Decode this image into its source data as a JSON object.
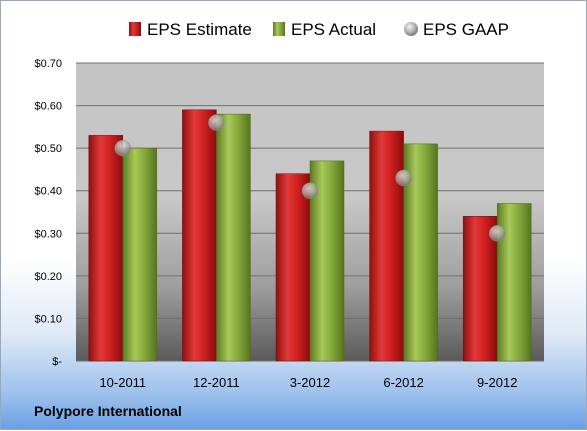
{
  "company": "Polypore International",
  "colors": {
    "estimate": "#cc1f1f",
    "actual": "#86a83c",
    "gaap": "#b8b8b8"
  },
  "chart_data": {
    "type": "bar",
    "categories": [
      "10-2011",
      "12-2011",
      "3-2012",
      "6-2012",
      "9-2012"
    ],
    "series": [
      {
        "name": "EPS Estimate",
        "kind": "bar",
        "values": [
          0.53,
          0.59,
          0.44,
          0.54,
          0.34
        ]
      },
      {
        "name": "EPS Actual",
        "kind": "bar",
        "values": [
          0.5,
          0.58,
          0.47,
          0.51,
          0.37
        ]
      },
      {
        "name": "EPS GAAP",
        "kind": "marker",
        "values": [
          0.5,
          0.56,
          0.4,
          0.43,
          0.3
        ]
      }
    ],
    "ylim": [
      0,
      0.7
    ],
    "yticks": [
      0,
      0.1,
      0.2,
      0.3,
      0.4,
      0.5,
      0.6,
      0.7
    ],
    "ytick_labels": [
      "$-",
      "$0.10",
      "$0.20",
      "$0.30",
      "$0.40",
      "$0.50",
      "$0.60",
      "$0.70"
    ],
    "grid": true,
    "legend_position": "top"
  }
}
